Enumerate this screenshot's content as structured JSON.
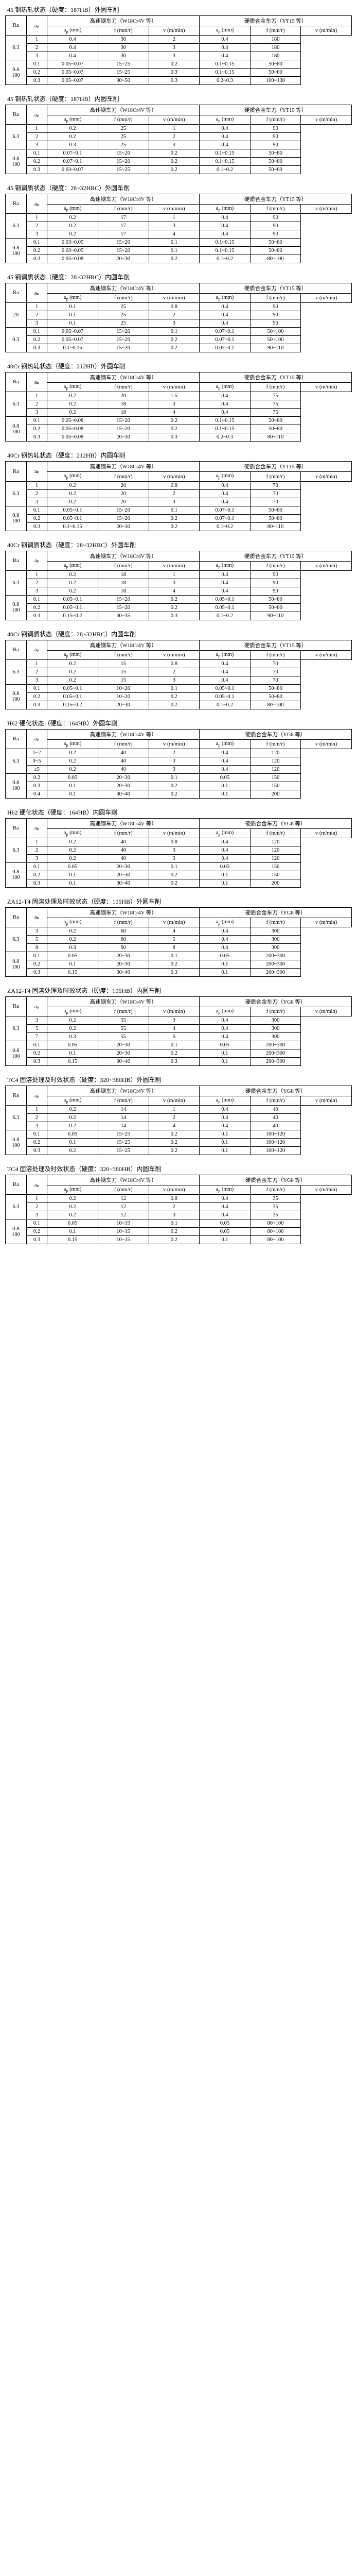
{
  "header_labels": {
    "ra": "Ra",
    "ap": "aₚ",
    "group_hss": "高速钢车刀（W18Cr4V 等）",
    "group_carbide": "硬质合金车刀（YT15 等）",
    "group_carbide_yg8": "硬质合金车刀（YG8 等）",
    "vc": "vᶜ (m/min)",
    "f": "f (mm/r)",
    "t": "t (s/件)"
  },
  "tables": [
    {
      "title": "45 钢热轧状态（硬度：187HB）外圆车削",
      "carbide_label": "硬质合金车刀（YT15 等）",
      "rows": [
        [
          "",
          "1",
          "0.4",
          "30",
          "2",
          "0.4",
          "180"
        ],
        [
          "6.3",
          "2",
          "0.4",
          "30",
          "3",
          "0.4",
          "180"
        ],
        [
          "",
          "3",
          "0.4",
          "30",
          "3",
          "0.4",
          "180"
        ],
        [
          "",
          "0.1",
          "0.05~0.07",
          "15~25",
          "0.2",
          "0.1~0.15",
          "50~80"
        ],
        [
          "0.8",
          "0.2",
          "0.05~0.07",
          "15~25",
          "0.3",
          "0.1~0.15",
          "50~80"
        ],
        [
          "100",
          "0.3",
          "0.05~0.07",
          "30~50",
          "0.3",
          "0.2~0.3",
          "100~130"
        ]
      ]
    },
    {
      "title": "45 钢热轧状态（硬度：187HB）内圆车削",
      "carbide_label": "硬质合金车刀（YT15 等）",
      "rows": [
        [
          "",
          "1",
          "0.2",
          "25",
          "1",
          "0.4",
          "90"
        ],
        [
          "6.3",
          "2",
          "0.2",
          "25",
          "2",
          "0.4",
          "90"
        ],
        [
          "",
          "3",
          "0.3",
          "25",
          "3",
          "0.4",
          "90"
        ],
        [
          "",
          "0.1",
          "0.07~0.1",
          "15~20",
          "0.2",
          "0.1~0.15",
          "50~80"
        ],
        [
          "0.8",
          "0.2",
          "0.07~0.1",
          "15~20",
          "0.2",
          "0.1~0.15",
          "50~80"
        ],
        [
          "100",
          "0.3",
          "0.03~0.07",
          "15~25",
          "0.2",
          "0.1~0.2",
          "50~80"
        ]
      ]
    },
    {
      "title": "45 钢调质状态（硬度：28~32HRC）外圆车削",
      "carbide_label": "硬质合金车刀（YT15 等）",
      "rows": [
        [
          "",
          "1",
          "0.2",
          "17",
          "1",
          "0.4",
          "90"
        ],
        [
          "6.3",
          "2",
          "0.2",
          "17",
          "3",
          "0.4",
          "90"
        ],
        [
          "",
          "3",
          "0.2",
          "17",
          "4",
          "0.4",
          "90"
        ],
        [
          "",
          "0.1",
          "0.03~0.05",
          "15~20",
          "0.1",
          "0.1~0.15",
          "50~80"
        ],
        [
          "0.8",
          "0.2",
          "0.03~0.05",
          "15~20",
          "0.1",
          "0.1~0.15",
          "50~80"
        ],
        [
          "100",
          "0.3",
          "0.05~0.08",
          "20~30",
          "0.2",
          "0.1~0.2",
          "80~100"
        ]
      ]
    },
    {
      "title": "45 钢调质状态（硬度：28~32HRC）内圆车削",
      "carbide_label": "硬质合金车刀（YT15 等）",
      "rows": [
        [
          "",
          "1",
          "0.1",
          "25",
          "0.8",
          "0.4",
          "90"
        ],
        [
          "20",
          "2",
          "0.1",
          "25",
          "2",
          "0.4",
          "90"
        ],
        [
          "",
          "3",
          "0.1",
          "25",
          "3",
          "0.4",
          "90"
        ],
        [
          "",
          "0.1",
          "0.05~0.07",
          "15~20",
          "0.1",
          "0.07~0.1",
          "50~100"
        ],
        [
          "0.3",
          "0.2",
          "0.05~0.07",
          "15~20",
          "0.2",
          "0.07~0.1",
          "50~100"
        ],
        [
          "",
          "0.3",
          "0.1~0.15",
          "15~20",
          "0.2",
          "0.07~0.1",
          "90~110"
        ]
      ]
    },
    {
      "title": "40Cr 钢热轧状态（硬度：212HB）外圆车削",
      "carbide_label": "硬质合金车刀（YT15 等）",
      "rows": [
        [
          "",
          "1",
          "0.2",
          "20",
          "1.5",
          "0.4",
          "75"
        ],
        [
          "6.3",
          "2",
          "0.2",
          "18",
          "3",
          "0.4",
          "75"
        ],
        [
          "",
          "3",
          "0.2",
          "18",
          "4",
          "0.4",
          "75"
        ],
        [
          "",
          "0.1",
          "0.05~0.08",
          "15~20",
          "0.2",
          "0.1~0.15",
          "50~80"
        ],
        [
          "0.8",
          "0.2",
          "0.05~0.08",
          "15~20",
          "0.2",
          "0.1~0.15",
          "50~80"
        ],
        [
          "100",
          "0.3",
          "0.05~0.08",
          "20~30",
          "0.3",
          "0.2~0.3",
          "80~110"
        ]
      ]
    },
    {
      "title": "40Cr 钢热轧状态（硬度：212HB）内圆车削",
      "carbide_label": "硬质合金车刀（YT15 等）",
      "rows": [
        [
          "",
          "1",
          "0.2",
          "20",
          "0.8",
          "0.4",
          "70"
        ],
        [
          "6.3",
          "2",
          "0.2",
          "20",
          "2",
          "0.4",
          "70"
        ],
        [
          "",
          "3",
          "0.2",
          "20",
          "3",
          "0.4",
          "70"
        ],
        [
          "",
          "0.1",
          "0.05~0.1",
          "15~20",
          "0.1",
          "0.07~0.1",
          "50~80"
        ],
        [
          "0.8",
          "0.2",
          "0.05~0.1",
          "15~20",
          "0.2",
          "0.07~0.1",
          "50~80"
        ],
        [
          "100",
          "0.3",
          "0.1~0.15",
          "20~30",
          "0.2",
          "0.1~0.2",
          "80~110"
        ]
      ]
    },
    {
      "title": "40Cr 钢调质状态（硬度：28~32HRC）外圆车削",
      "carbide_label": "硬质合金车刀（YT15 等）",
      "rows": [
        [
          "",
          "1",
          "0.2",
          "18",
          "1",
          "0.4",
          "90"
        ],
        [
          "6.3",
          "2",
          "0.2",
          "18",
          "3",
          "0.4",
          "90"
        ],
        [
          "",
          "3",
          "0.2",
          "18",
          "4",
          "0.4",
          "90"
        ],
        [
          "",
          "0.1",
          "0.05~0.1",
          "15~20",
          "0.2",
          "0.05~0.1",
          "50~80"
        ],
        [
          "0.8",
          "0.2",
          "0.05~0.1",
          "15~20",
          "0.2",
          "0.05~0.1",
          "50~80"
        ],
        [
          "100",
          "0.3",
          "0.15~0.2",
          "30~35",
          "0.3",
          "0.1~0.2",
          "90~110"
        ]
      ]
    },
    {
      "title": "40Cr 钢调质状态（硬度：28~32HRC）内圆车削",
      "carbide_label": "硬质合金车刀（YT15 等）",
      "rows": [
        [
          "",
          "1",
          "0.2",
          "15",
          "0.8",
          "0.4",
          "70"
        ],
        [
          "6.3",
          "2",
          "0.2",
          "15",
          "2",
          "0.4",
          "70"
        ],
        [
          "",
          "3",
          "0.2",
          "15",
          "3",
          "0.4",
          "70"
        ],
        [
          "",
          "0.1",
          "0.05~0.1",
          "10~20",
          "0.1",
          "0.05~0.1",
          "50~80"
        ],
        [
          "0.8",
          "0.2",
          "0.05~0.1",
          "10~20",
          "0.2",
          "0.05~0.1",
          "50~80"
        ],
        [
          "100",
          "0.3",
          "0.15~0.2",
          "20~30",
          "0.2",
          "0.1~0.2",
          "80~100"
        ]
      ]
    },
    {
      "title": "H62 硬化状态（硬度：164HB）外圆车削",
      "carbide_label": "硬质合金车刀（YG8 等）",
      "rows": [
        [
          "",
          "1~2",
          "0.2",
          "40",
          "2",
          "0.4",
          "120"
        ],
        [
          "6.3",
          "3~5",
          "0.2",
          "40",
          "3",
          "0.4",
          "120"
        ],
        [
          "",
          "≥5",
          "0.2",
          "40",
          "3",
          "0.4",
          "120"
        ],
        [
          "",
          "0.2",
          "0.05",
          "20~30",
          "0.1",
          "0.05",
          "150"
        ],
        [
          "0.8",
          "0.3",
          "0.1",
          "20~30",
          "0.2",
          "0.1",
          "150"
        ],
        [
          "100",
          "0.4",
          "0.1",
          "30~40",
          "0.2",
          "0.1",
          "200"
        ]
      ]
    },
    {
      "title": "H62 硬化状态（硬度：164HB）内圆车削",
      "carbide_label": "硬质合金车刀（YG8 等）",
      "rows": [
        [
          "",
          "1",
          "0.2",
          "40",
          "0.8",
          "0.4",
          "120"
        ],
        [
          "6.3",
          "2",
          "0.2",
          "40",
          "3",
          "0.4",
          "120"
        ],
        [
          "",
          "3",
          "0.2",
          "40",
          "3",
          "0.4",
          "120"
        ],
        [
          "",
          "0.1",
          "0.05",
          "20~30",
          "0.1",
          "0.05",
          "150"
        ],
        [
          "0.8",
          "0.2",
          "0.1",
          "20~30",
          "0.2",
          "0.1",
          "150"
        ],
        [
          "100",
          "0.3",
          "0.1",
          "30~40",
          "0.2",
          "0.1",
          "200"
        ]
      ]
    },
    {
      "title": "ZA12-T4 固溶处理及时效状态（硬度：105HB）外圆车削",
      "carbide_label": "硬质合金车刀（YG8 等）",
      "rows": [
        [
          "",
          "3",
          "0.2",
          "60",
          "4",
          "0.4",
          "300"
        ],
        [
          "6.3",
          "5",
          "0.2",
          "60",
          "5",
          "0.4",
          "300"
        ],
        [
          "",
          "8",
          "0.3",
          "60",
          "8",
          "0.4",
          "300"
        ],
        [
          "",
          "0.1",
          "0.05",
          "20~30",
          "0.1",
          "0.05",
          "200~300"
        ],
        [
          "0.8",
          "0.2",
          "0.1",
          "20~30",
          "0.2",
          "0.1",
          "200~300"
        ],
        [
          "100",
          "0.3",
          "0.15",
          "30~40",
          "0.3",
          "0.1",
          "200~300"
        ]
      ]
    },
    {
      "title": "ZA12-T4 固溶处理及时效状态（硬度：105HB）内圆车削",
      "carbide_label": "硬质合金车刀（YG8 等）",
      "rows": [
        [
          "",
          "3",
          "0.2",
          "55",
          "3",
          "0.4",
          "300"
        ],
        [
          "6.3",
          "5",
          "0.2",
          "55",
          "4",
          "0.4",
          "300"
        ],
        [
          "",
          "7",
          "0.3",
          "55",
          "6",
          "0.4",
          "300"
        ],
        [
          "",
          "0.1",
          "0.05",
          "20~30",
          "0.1",
          "0.05",
          "200~300"
        ],
        [
          "0.8",
          "0.2",
          "0.1",
          "20~30",
          "0.2",
          "0.1",
          "200~300"
        ],
        [
          "100",
          "0.3",
          "0.15",
          "30~40",
          "0.3",
          "0.1",
          "200~300"
        ]
      ]
    },
    {
      "title": "TC4 固溶处理及时效状态（硬度：320~380HB）外圆车削",
      "carbide_label": "硬质合金车刀（YG8 等）",
      "rows": [
        [
          "",
          "1",
          "0.2",
          "14",
          "1",
          "0.4",
          "40"
        ],
        [
          "6.3",
          "2",
          "0.2",
          "14",
          "2",
          "0.4",
          "40"
        ],
        [
          "",
          "3",
          "0.2",
          "14",
          "4",
          "0.4",
          "40"
        ],
        [
          "",
          "0.1",
          "0.05",
          "15~25",
          "0.2",
          "0.1",
          "100~120"
        ],
        [
          "0.8",
          "0.2",
          "0.1",
          "15~25",
          "0.2",
          "0.1",
          "100~120"
        ],
        [
          "100",
          "0.3",
          "0.2",
          "15~25",
          "0.2",
          "0.1",
          "100~120"
        ]
      ]
    },
    {
      "title": "TC4 固溶处理及时效状态（硬度：320~380HB）内圆车削",
      "carbide_label": "硬质合金车刀（YG8 等）",
      "rows": [
        [
          "",
          "1",
          "0.2",
          "12",
          "0.8",
          "0.4",
          "35"
        ],
        [
          "6.3",
          "2",
          "0.2",
          "12",
          "2",
          "0.4",
          "35"
        ],
        [
          "",
          "3",
          "0.2",
          "12",
          "3",
          "0.4",
          "35"
        ],
        [
          "",
          "0.1",
          "0.05",
          "10~15",
          "0.1",
          "0.05",
          "80~100"
        ],
        [
          "0.8",
          "0.2",
          "0.1",
          "10~15",
          "0.2",
          "0.05",
          "80~100"
        ],
        [
          "100",
          "0.3",
          "0.15",
          "10~15",
          "0.2",
          "0.1",
          "80~100"
        ]
      ]
    }
  ]
}
